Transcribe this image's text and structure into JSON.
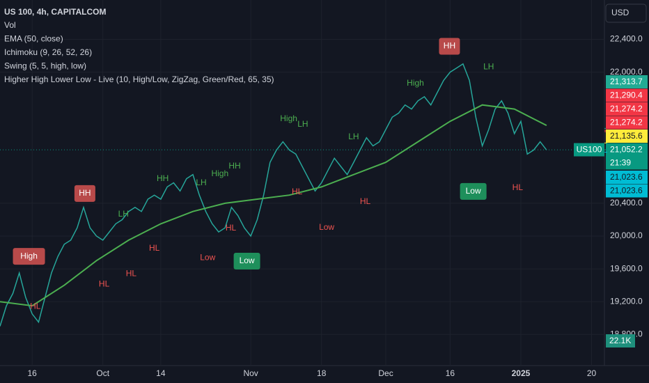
{
  "chart_data": {
    "type": "line",
    "title": "US 100, 4h, CAPITALCOM",
    "indicators": [
      "Vol",
      "EMA (50, close)",
      "Ichimoku (9, 26, 52, 26)",
      "Swing (5, 5, high, low)",
      "Higher High Lower Low - Live (10, High/Low, ZigZag, Green/Red, 65, 35)"
    ],
    "currency": "USD",
    "symbol": "US100",
    "countdown": "21:39",
    "volume_label": "22.1K",
    "xlim": [
      -5,
      89
    ],
    "ylim": [
      18420,
      22880
    ],
    "xticks": [
      {
        "value": 0,
        "label": "16"
      },
      {
        "value": 11,
        "label": "Oct"
      },
      {
        "value": 20,
        "label": "14"
      },
      {
        "value": 34,
        "label": "Nov"
      },
      {
        "value": 45,
        "label": "18"
      },
      {
        "value": 55,
        "label": "Dec"
      },
      {
        "value": 65,
        "label": "16"
      },
      {
        "value": 76,
        "label": "2025"
      },
      {
        "value": 87,
        "label": "20"
      }
    ],
    "yticks": [
      {
        "value": 18800,
        "label": "18,800.0"
      },
      {
        "value": 19200,
        "label": "19,200.0"
      },
      {
        "value": 19600,
        "label": "19,600.0"
      },
      {
        "value": 20000,
        "label": "20,000.0"
      },
      {
        "value": 20400,
        "label": "20,400.0"
      },
      {
        "value": 22000,
        "label": "22,000.0"
      },
      {
        "value": 22400,
        "label": "22,400.0"
      }
    ],
    "grid": true,
    "series": [
      {
        "color": "#26a69a",
        "x": [
          -5,
          -4,
          -3,
          -2,
          -1,
          0,
          1,
          2,
          3,
          4,
          5,
          6,
          7,
          8,
          9,
          10,
          11,
          12,
          13,
          14,
          15,
          16,
          17,
          18,
          19,
          20,
          21,
          22,
          23,
          24,
          25,
          26,
          27,
          28,
          29,
          30,
          31,
          32,
          33,
          34,
          35,
          36,
          37,
          38,
          39,
          40,
          41,
          42,
          43,
          44,
          45,
          46,
          47,
          48,
          49,
          50,
          51,
          52,
          53,
          54,
          55,
          56,
          57,
          58,
          59,
          60,
          61,
          62,
          63,
          64,
          65,
          66,
          67,
          68,
          69,
          70,
          71,
          72,
          73,
          74,
          75,
          76,
          77,
          78,
          79,
          80
        ],
        "values": [
          18900,
          19150,
          19300,
          19550,
          19250,
          19050,
          18950,
          19250,
          19550,
          19750,
          19900,
          19950,
          20100,
          20350,
          20100,
          20000,
          19950,
          20050,
          20150,
          20200,
          20300,
          20350,
          20300,
          20450,
          20500,
          20450,
          20600,
          20650,
          20550,
          20700,
          20750,
          20500,
          20300,
          20150,
          20050,
          20100,
          20350,
          20250,
          20100,
          20000,
          20200,
          20500,
          20900,
          21050,
          21150,
          21050,
          21000,
          20850,
          20700,
          20550,
          20650,
          20800,
          20950,
          20850,
          20750,
          20900,
          21050,
          21200,
          21100,
          21150,
          21300,
          21450,
          21500,
          21600,
          21550,
          21650,
          21700,
          21600,
          21750,
          21900,
          22000,
          22050,
          22100,
          21900,
          21450,
          21100,
          21300,
          21550,
          21650,
          21500,
          21250,
          21400,
          21000,
          21050,
          21150,
          21050
        ]
      },
      {
        "color": "#4caf50",
        "x": [
          -5,
          0,
          5,
          10,
          15,
          20,
          25,
          30,
          35,
          40,
          45,
          50,
          55,
          60,
          65,
          70,
          75,
          80
        ],
        "values": [
          19200,
          19150,
          19400,
          19700,
          19950,
          20150,
          20300,
          20400,
          20450,
          20500,
          20600,
          20750,
          20900,
          21150,
          21400,
          21600,
          21550,
          21350
        ]
      }
    ],
    "annotations": [
      {
        "text": "High",
        "x": -0.5,
        "y": 19753,
        "style": "box",
        "color": "#b84a4a"
      },
      {
        "text": "HH",
        "x": 8.2,
        "y": 20519,
        "style": "box",
        "color": "#b84a4a"
      },
      {
        "text": "Low",
        "x": 33.4,
        "y": 19694,
        "style": "box",
        "color": "#1e8f5b"
      },
      {
        "text": "HH",
        "x": 64.9,
        "y": 22315,
        "style": "box",
        "color": "#b84a4a"
      },
      {
        "text": "Low",
        "x": 68.6,
        "y": 20545,
        "style": "box",
        "color": "#1e8f5b"
      },
      {
        "text": "High",
        "x": 59.6,
        "y": 21864,
        "style": "text",
        "color": "#4caf50"
      },
      {
        "text": "High",
        "x": 39.9,
        "y": 21430,
        "style": "text",
        "color": "#4caf50"
      },
      {
        "text": "LH",
        "x": 42.1,
        "y": 21362,
        "style": "text",
        "color": "#4caf50"
      },
      {
        "text": "LH",
        "x": 50,
        "y": 21209,
        "style": "text",
        "color": "#4caf50"
      },
      {
        "text": "LH",
        "x": 71,
        "y": 22060,
        "style": "text",
        "color": "#4caf50"
      },
      {
        "text": "LH",
        "x": 14.2,
        "y": 20264,
        "style": "text",
        "color": "#4caf50"
      },
      {
        "text": "LH",
        "x": 26.3,
        "y": 20647,
        "style": "text",
        "color": "#4caf50"
      },
      {
        "text": "HH",
        "x": 20.3,
        "y": 20698,
        "style": "text",
        "color": "#4caf50"
      },
      {
        "text": "High",
        "x": 29.2,
        "y": 20757,
        "style": "text",
        "color": "#4caf50"
      },
      {
        "text": "HH",
        "x": 31.5,
        "y": 20851,
        "style": "text",
        "color": "#4caf50"
      },
      {
        "text": "HL",
        "x": 11.2,
        "y": 19413,
        "style": "text",
        "color": "#ef5350"
      },
      {
        "text": "HL",
        "x": 15.4,
        "y": 19540,
        "style": "text",
        "color": "#ef5350"
      },
      {
        "text": "HL",
        "x": 19,
        "y": 19847,
        "style": "text",
        "color": "#ef5350"
      },
      {
        "text": "Low",
        "x": 27.3,
        "y": 19736,
        "style": "text",
        "color": "#ef5350"
      },
      {
        "text": "HL",
        "x": 30.9,
        "y": 20094,
        "style": "text",
        "color": "#ef5350"
      },
      {
        "text": "HL",
        "x": 41.2,
        "y": 20536,
        "style": "text",
        "color": "#ef5350"
      },
      {
        "text": "HL",
        "x": 51.8,
        "y": 20417,
        "style": "text",
        "color": "#ef5350"
      },
      {
        "text": "Low",
        "x": 45.8,
        "y": 20102,
        "style": "text",
        "color": "#ef5350"
      },
      {
        "text": "HL",
        "x": 75.5,
        "y": 20587,
        "style": "text",
        "color": "#ef5350"
      },
      {
        "text": "HL",
        "x": 0.5,
        "y": 19140,
        "style": "text",
        "color": "#ef5350"
      }
    ],
    "price_labels": [
      {
        "value": 21313.7,
        "label": "21,313.7",
        "color": "#22ab94"
      },
      {
        "value": 21290.4,
        "label": "21,290.4",
        "color": "#f23645"
      },
      {
        "value": 21274.2,
        "label": "21,274.2",
        "color": "#f23645"
      },
      {
        "value": 21274.2,
        "label": "21,274.2",
        "color": "#f23645"
      },
      {
        "value": 21135.6,
        "label": "21,135.6",
        "color": "#ffeb3b"
      },
      {
        "value": 21052.2,
        "label": "21,052.2",
        "color": "#089981"
      },
      {
        "value": 21023.6,
        "label": "21,023.6",
        "color": "#00bcd4"
      },
      {
        "value": 21023.6,
        "label": "21,023.6",
        "color": "#00bcd4"
      }
    ]
  }
}
